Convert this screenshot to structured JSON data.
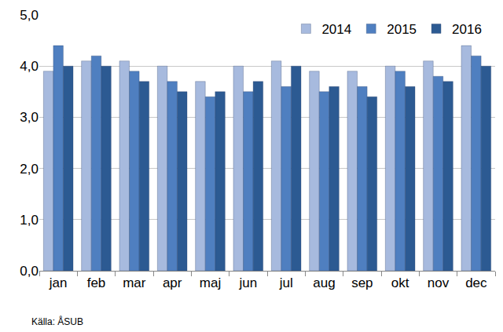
{
  "chart_data": {
    "type": "bar",
    "categories": [
      "jan",
      "feb",
      "mar",
      "apr",
      "maj",
      "jun",
      "jul",
      "aug",
      "sep",
      "okt",
      "nov",
      "dec"
    ],
    "series": [
      {
        "name": "2014",
        "color": "#a7bade",
        "values": [
          3.9,
          4.1,
          4.1,
          4.0,
          3.7,
          4.0,
          4.1,
          3.9,
          3.9,
          4.0,
          4.1,
          4.4
        ]
      },
      {
        "name": "2015",
        "color": "#4f7fc0",
        "values": [
          4.4,
          4.2,
          3.9,
          3.7,
          3.4,
          3.5,
          3.6,
          3.5,
          3.6,
          3.9,
          3.8,
          4.2
        ]
      },
      {
        "name": "2016",
        "color": "#2c5a92",
        "values": [
          4.0,
          4.0,
          3.7,
          3.5,
          3.5,
          3.7,
          4.0,
          3.6,
          3.4,
          3.6,
          3.7,
          4.0
        ]
      }
    ],
    "ylim": [
      0,
      5
    ],
    "yticks": [
      {
        "value": 0,
        "label": "0,0"
      },
      {
        "value": 1,
        "label": "1,0"
      },
      {
        "value": 2,
        "label": "2,0"
      },
      {
        "value": 3,
        "label": "3,0"
      },
      {
        "value": 4,
        "label": "4,0"
      },
      {
        "value": 5,
        "label": "5,0"
      }
    ],
    "grid": true,
    "legend": "top right",
    "source": "Källa: ÅSUB"
  }
}
